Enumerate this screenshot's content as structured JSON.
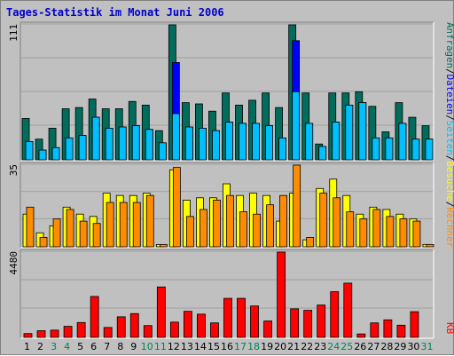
{
  "title": "Tages-Statistik im Monat Juni 2006",
  "chart_data": [
    {
      "type": "bar",
      "ymax_label": "111",
      "ymax": 111,
      "categories": [
        "1",
        "2",
        "3",
        "4",
        "5",
        "6",
        "7",
        "8",
        "9",
        "10",
        "11",
        "12",
        "13",
        "14",
        "15",
        "16",
        "17",
        "18",
        "19",
        "20",
        "21",
        "22",
        "23",
        "24",
        "25",
        "26",
        "27",
        "28",
        "29",
        "30",
        "31"
      ],
      "series": [
        {
          "name": "Anfragen",
          "color": "#006c5b",
          "values": [
            34,
            17,
            26,
            42,
            43,
            50,
            42,
            42,
            48,
            45,
            24,
            111,
            47,
            46,
            40,
            55,
            45,
            49,
            55,
            43,
            111,
            55,
            13,
            55,
            55,
            56,
            44,
            23,
            47,
            35,
            28
          ]
        },
        {
          "name": "Dateien",
          "color": "#0000ff",
          "values": [
            15,
            8,
            10,
            18,
            20,
            35,
            26,
            27,
            28,
            25,
            14,
            80,
            27,
            26,
            24,
            31,
            30,
            30,
            28,
            18,
            98,
            30,
            11,
            31,
            45,
            47,
            18,
            18,
            30,
            17,
            17
          ]
        },
        {
          "name": "Seiten",
          "color": "#00bfff",
          "values": [
            15,
            8,
            10,
            18,
            20,
            35,
            26,
            27,
            28,
            25,
            14,
            38,
            27,
            26,
            24,
            31,
            30,
            30,
            28,
            18,
            56,
            30,
            11,
            31,
            45,
            47,
            18,
            18,
            30,
            17,
            17
          ]
        }
      ],
      "right_labels": [
        "Anfragen",
        "/",
        "Dateien",
        "/",
        "Seiten",
        "/",
        "Besuche",
        "/",
        "Rechner"
      ]
    },
    {
      "type": "bar",
      "ymax_label": "35",
      "ymax": 35,
      "series": [
        {
          "name": "Besuche",
          "color": "#ffff00",
          "values": [
            14,
            6,
            9,
            17,
            14,
            13,
            23,
            22,
            22,
            23,
            1,
            33,
            20,
            21,
            21,
            27,
            22,
            23,
            22,
            11,
            23,
            3,
            25,
            29,
            22,
            14,
            17,
            16,
            14,
            12,
            1
          ]
        },
        {
          "name": "Rechner",
          "color": "#ff8c00",
          "values": [
            17,
            4,
            12,
            16,
            11,
            10,
            19,
            19,
            19,
            22,
            1,
            34,
            13,
            16,
            20,
            22,
            15,
            14,
            18,
            22,
            35,
            4,
            23,
            21,
            15,
            12,
            16,
            13,
            12,
            11,
            1
          ]
        }
      ]
    },
    {
      "type": "bar",
      "ymax_label": "4480",
      "ymax": 4480,
      "series": [
        {
          "name": "KB",
          "color": "#ff0000",
          "values": [
            200,
            350,
            380,
            580,
            780,
            2150,
            520,
            1080,
            1250,
            620,
            2650,
            800,
            1370,
            1220,
            760,
            2050,
            2050,
            1650,
            860,
            4480,
            1500,
            1420,
            1700,
            2400,
            2850,
            180,
            760,
            920,
            640,
            1350,
            0
          ]
        }
      ],
      "right_label": "KB"
    }
  ],
  "x_label_colors": {
    "weekday": "#000000",
    "weekend": "#00805a"
  },
  "weekend_days": [
    "3",
    "4",
    "10",
    "11",
    "17",
    "18",
    "24",
    "25",
    "31"
  ]
}
